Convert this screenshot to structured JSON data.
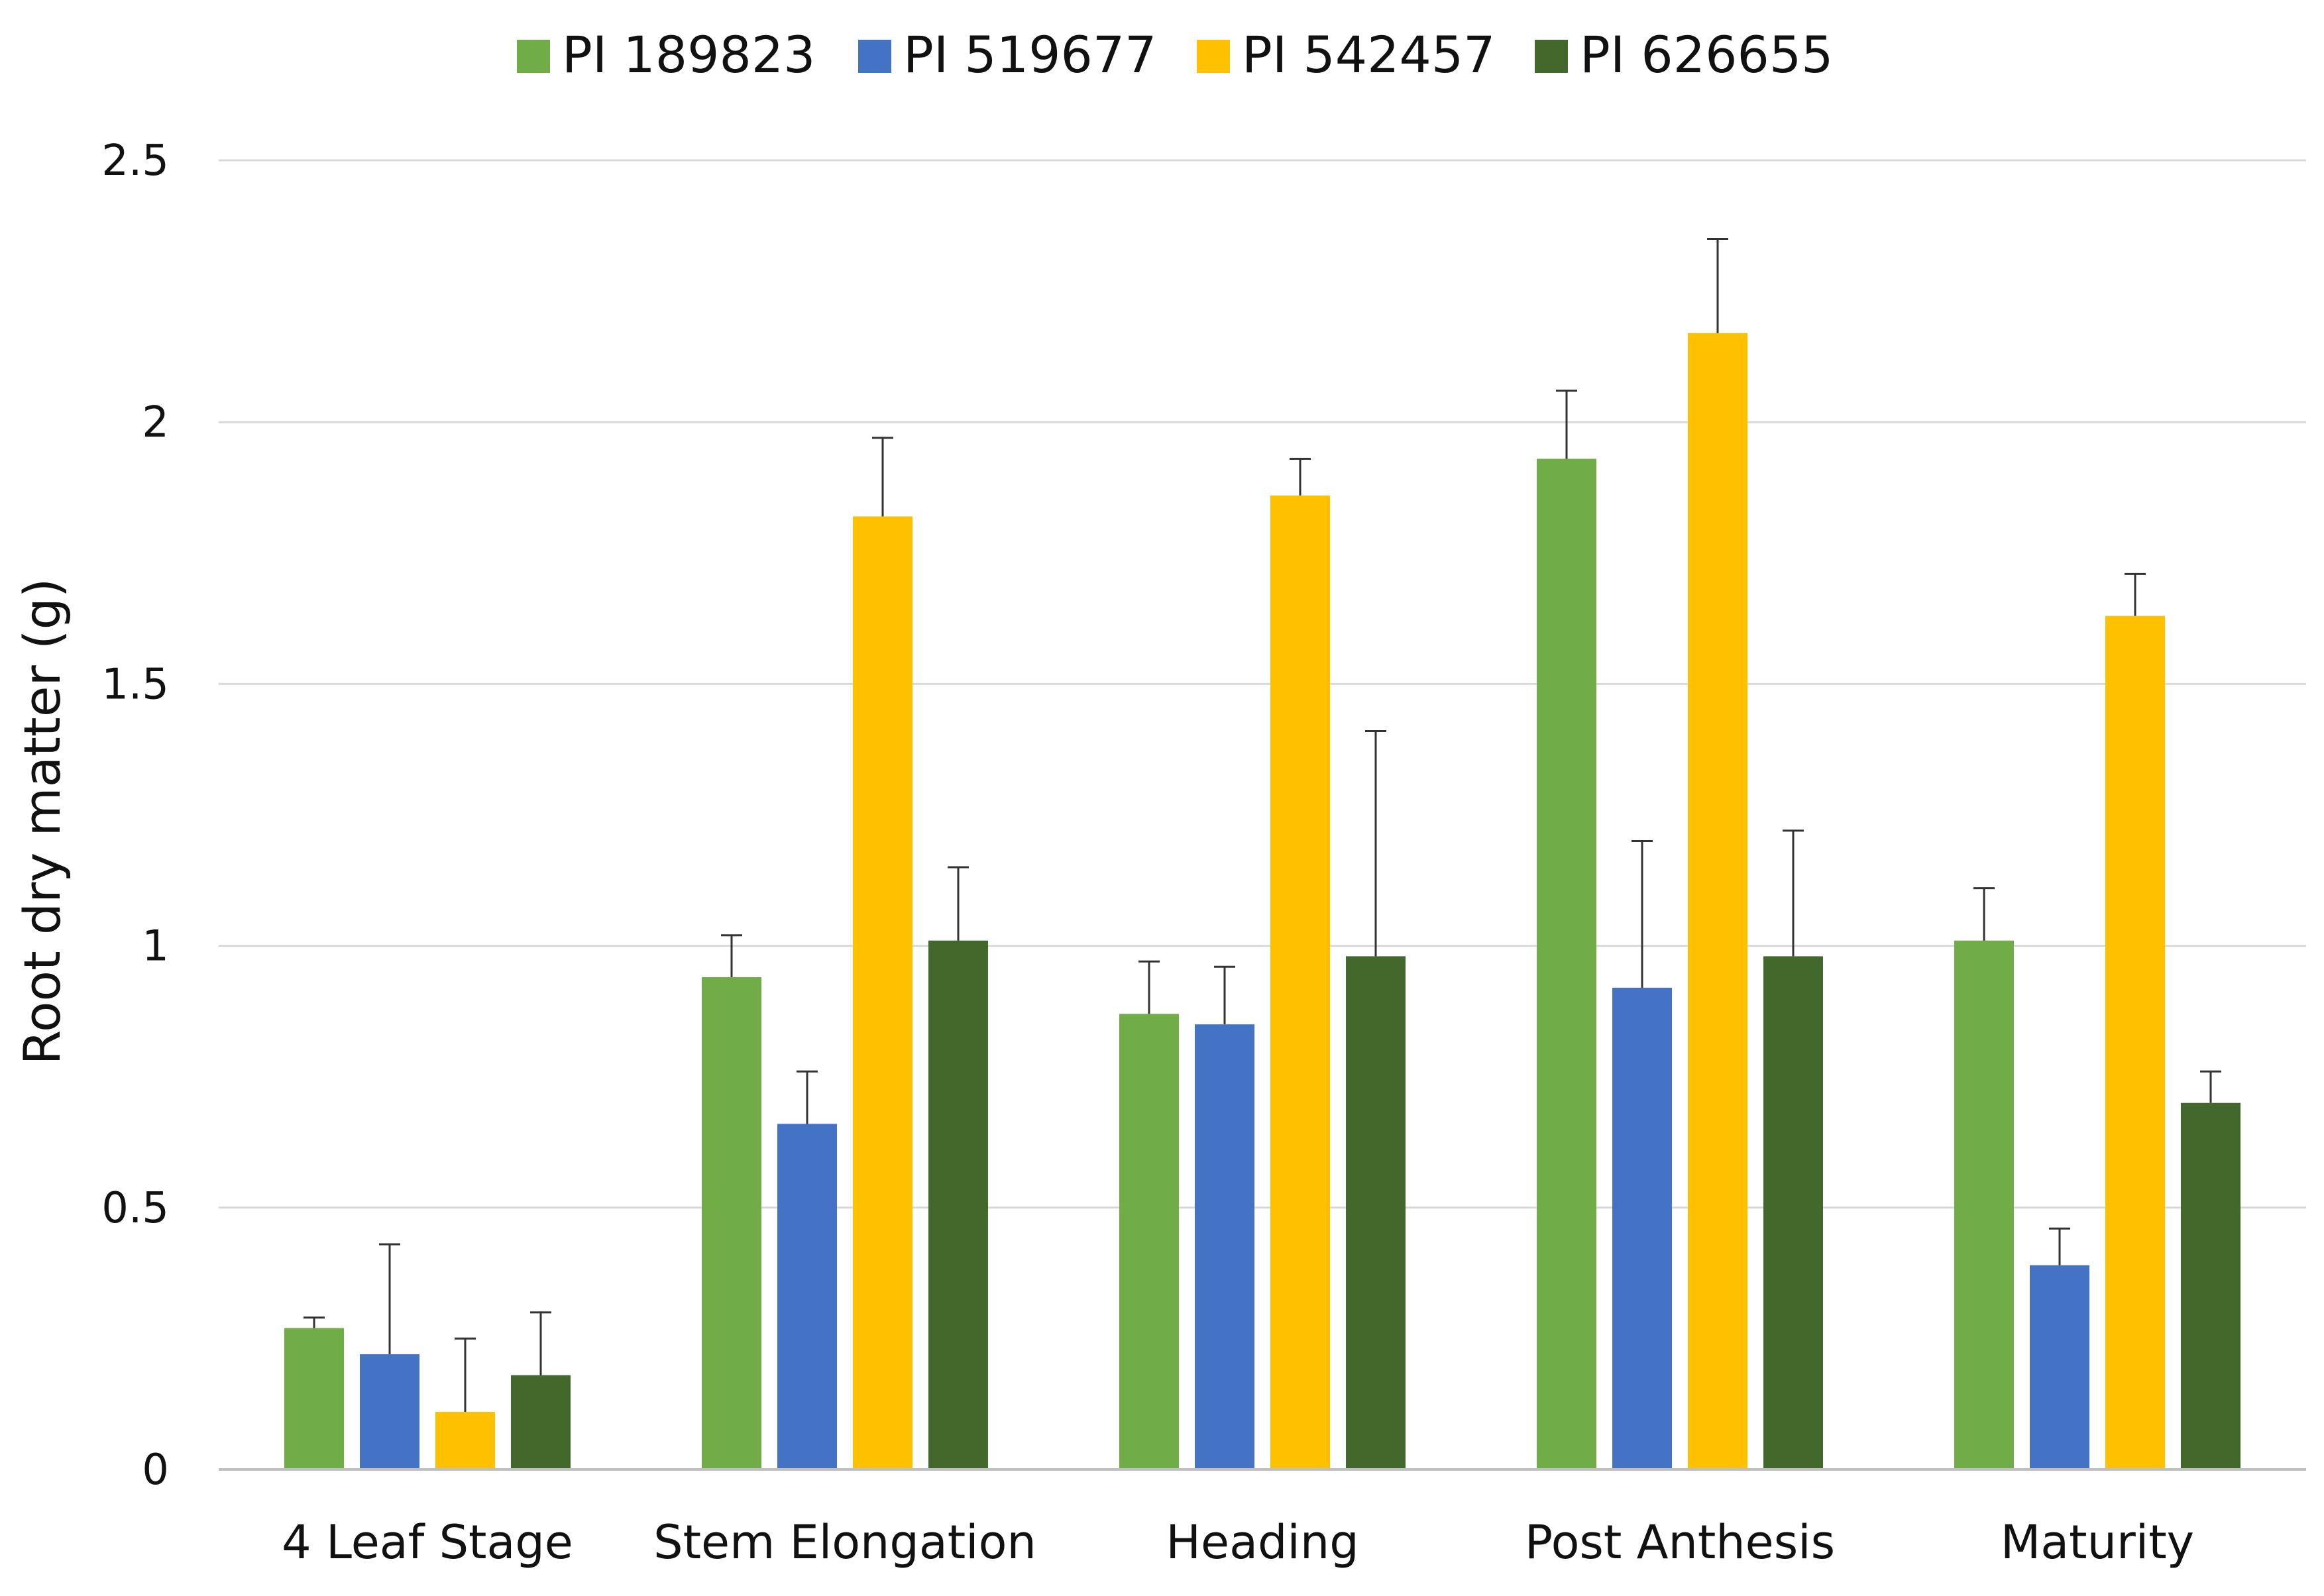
{
  "chart_data": {
    "type": "bar",
    "title": "",
    "xlabel": "",
    "ylabel": "Root dry matter (g)",
    "ylim": [
      0,
      2.5
    ],
    "yticks": [
      0,
      0.5,
      1,
      1.5,
      2,
      2.5
    ],
    "ytick_labels": [
      "0",
      "0.5",
      "1",
      "1.5",
      "2",
      "2.5"
    ],
    "grid": true,
    "legend_position": "top",
    "categories": [
      "4 Leaf Stage",
      "Stem Elongation",
      "Heading",
      "Post Anthesis",
      "Maturity"
    ],
    "series": [
      {
        "name": "PI 189823",
        "color": "#70ad47",
        "values": [
          0.27,
          0.94,
          0.87,
          1.93,
          1.01
        ],
        "error_upper": [
          0.29,
          1.02,
          0.97,
          2.06,
          1.11
        ]
      },
      {
        "name": "PI 519677",
        "color": "#4472c4",
        "values": [
          0.22,
          0.66,
          0.85,
          0.92,
          0.39
        ],
        "error_upper": [
          0.43,
          0.76,
          0.96,
          1.2,
          0.46
        ]
      },
      {
        "name": "PI 542457",
        "color": "#ffc000",
        "values": [
          0.11,
          1.82,
          1.86,
          2.17,
          1.63
        ],
        "error_upper": [
          0.25,
          1.97,
          1.93,
          2.35,
          1.71
        ]
      },
      {
        "name": "PI 626655",
        "color": "#43682b",
        "values": [
          0.18,
          1.01,
          0.98,
          0.98,
          0.7
        ],
        "error_upper": [
          0.3,
          1.15,
          1.41,
          1.22,
          0.76
        ]
      }
    ]
  }
}
